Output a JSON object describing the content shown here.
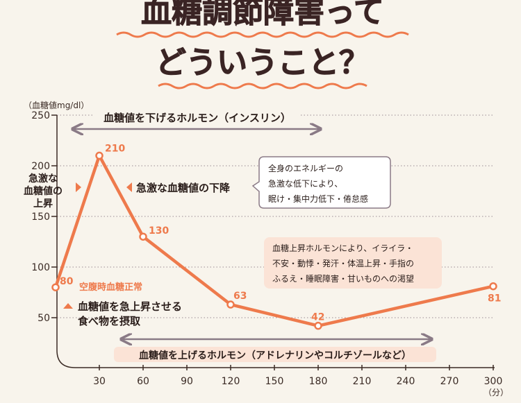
{
  "title_line1": "血糖調節障害って",
  "title_line2": "どういうこと？",
  "colors": {
    "line": "#ee7a4c",
    "title": "#3a2424",
    "title_stroke": "#ee7a4c",
    "band": "#fbe3d6",
    "arrow_gray": "#8a7a86",
    "label_text": "#2a1d1a",
    "note_box": "#fbe3d6",
    "note_border": "#8a7a86"
  },
  "chart_data": {
    "type": "line",
    "ylabel": "（血糖値mg/dl）",
    "xunit": "（分）",
    "xlim": [
      0,
      300
    ],
    "ylim": [
      0,
      250
    ],
    "x_ticks": [
      30,
      60,
      90,
      120,
      150,
      180,
      210,
      240,
      270,
      300
    ],
    "y_ticks": [
      50,
      100,
      150,
      200,
      250
    ],
    "grid": "horizontal dotted",
    "x": [
      0,
      30,
      60,
      120,
      180,
      300
    ],
    "y": [
      80,
      210,
      130,
      63,
      42,
      81
    ],
    "point_labels": [
      "80",
      "210",
      "130",
      "63",
      "42",
      "81"
    ]
  },
  "annotations": {
    "insulin_arrow": "血糖値を下げるホルモン（インスリン）",
    "counter_arrow": "血糖値を上げるホルモン（アドレナリンやコルチゾールなど）",
    "rapid_rise_1": "急激な",
    "rapid_rise_2": "血糖値の",
    "rapid_rise_3": "上昇",
    "rapid_drop": "急激な血糖値の下降",
    "fasting_normal": "空腹時血糖正常",
    "food_1": "血糖値を急上昇させる",
    "food_2": "食べ物を摂取",
    "note1_1": "全身のエネルギーの",
    "note1_2": "急激な低下により、",
    "note1_3": "眠け・集中力低下・倦怠感",
    "note2_1": "血糖上昇ホルモンにより、イライラ・",
    "note2_2": "不安・動悸・発汗・体温上昇・手指の",
    "note2_3": "ふるえ・睡眠障害・甘いものへの渇望"
  }
}
